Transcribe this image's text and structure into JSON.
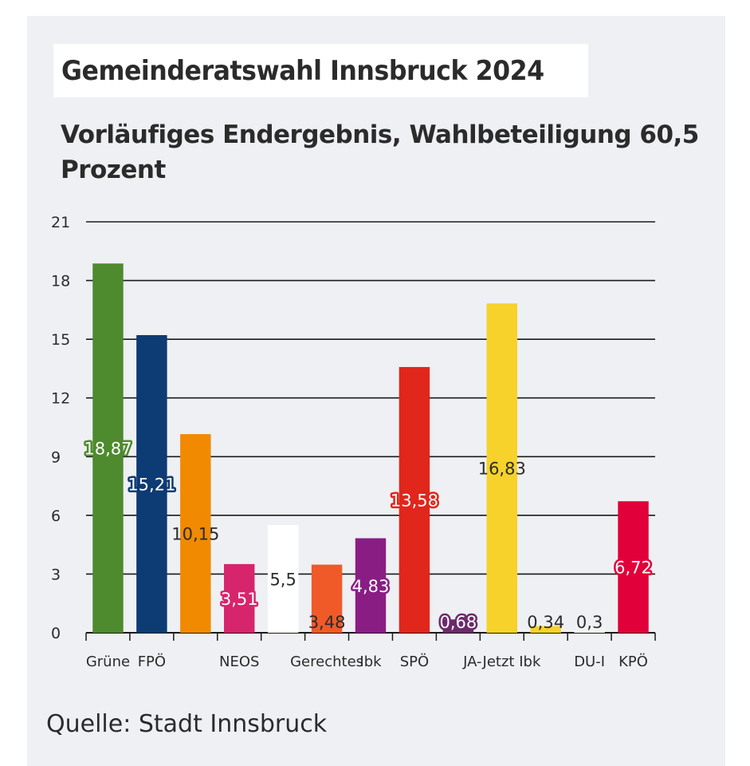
{
  "header": {
    "title": "Gemeinderatswahl Innsbruck 2024",
    "subtitle": "Vorläufiges Endergebnis, Wahlbeteiligung 60,5 Prozent"
  },
  "footer": {
    "source": "Quelle: Stadt Innsbruck"
  },
  "chart_data": {
    "type": "bar",
    "title": "Gemeinderatswahl Innsbruck 2024",
    "subtitle": "Vorläufiges Endergebnis, Wahlbeteiligung 60,5 Prozent",
    "xlabel": "",
    "ylabel": "",
    "ylim": [
      0,
      21
    ],
    "yticks": [
      0,
      3,
      6,
      9,
      12,
      15,
      18,
      21
    ],
    "grid": true,
    "categories": [
      "Grüne",
      "FPÖ",
      "",
      "NEOS",
      "",
      "Gerechtes",
      "Ibk",
      "SPÖ",
      "",
      "JA-Jetzt Ibk",
      "",
      "DU-I",
      "KPÖ"
    ],
    "values": [
      18.87,
      15.21,
      10.15,
      3.51,
      5.5,
      3.48,
      4.83,
      13.58,
      0.68,
      16.83,
      0.34,
      0.3,
      6.72
    ],
    "value_labels": [
      "18,87",
      "15,21",
      "10,15",
      "3,51",
      "5,5",
      "3,48",
      "4,83",
      "13,58",
      "0,68",
      "16,83",
      "0,34",
      "0,3",
      "6,72"
    ],
    "colors": [
      "#4e8a2e",
      "#0d3b73",
      "#f18a00",
      "#d7256d",
      "#ffffff",
      "#f05a28",
      "#8a1d84",
      "#e1261c",
      "#6b2a6b",
      "#f6d22a",
      "#f6d22a",
      "#f2f2f2",
      "#e2003a"
    ],
    "label_text_colors": [
      "#4e8a2e",
      "#0d3b73",
      "#2b2b2b",
      "#d7256d",
      "#2b2b2b",
      "#2b2b2b",
      "#8a1d84",
      "#e1261c",
      "#6b2a6b",
      "#2b2b2b",
      "#2b2b2b",
      "#2b2b2b",
      "#e2003a"
    ],
    "label_outlined": [
      true,
      true,
      false,
      true,
      false,
      false,
      true,
      true,
      true,
      false,
      false,
      false,
      true
    ]
  }
}
